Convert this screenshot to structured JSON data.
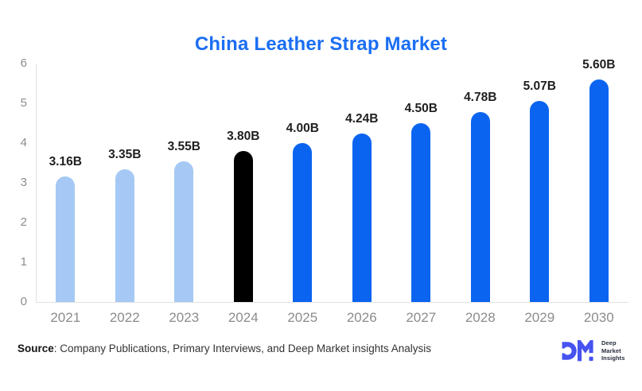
{
  "title": "China Leather Strap Market",
  "chart_data": {
    "type": "bar",
    "title": "China Leather Strap Market",
    "categories": [
      "2021",
      "2022",
      "2023",
      "2024",
      "2025",
      "2026",
      "2027",
      "2028",
      "2029",
      "2030"
    ],
    "values": [
      3.16,
      3.35,
      3.55,
      3.8,
      4.0,
      4.24,
      4.5,
      4.78,
      5.07,
      5.6
    ],
    "bar_labels": [
      "3.16B",
      "3.35B",
      "3.55B",
      "3.80B",
      "4.00B",
      "4.24B",
      "4.50B",
      "4.78B",
      "5.07B",
      "5.60B"
    ],
    "bar_colors": [
      "#A5C9F4",
      "#A5C9F4",
      "#A5C9F4",
      "#000000",
      "#0A64F0",
      "#0A64F0",
      "#0A64F0",
      "#0A64F0",
      "#0A64F0",
      "#0A64F0"
    ],
    "xlabel": "",
    "ylabel": "",
    "ylim": [
      0,
      6
    ],
    "yticks": [
      0,
      1,
      2,
      3,
      4,
      5,
      6
    ],
    "grid": false,
    "legend": "none"
  },
  "footer": {
    "source_label": "Source",
    "source_rest": ": Company Publications, Primary Interviews, and Deep Market insights Analysis"
  },
  "logo": {
    "mark": "DM",
    "lines": [
      "Deep",
      "Market",
      "Insights"
    ]
  },
  "colors": {
    "title": "#1B6EF3",
    "axis_line": "#E3E3E3",
    "tick_text": "#8C8C8C",
    "value_text": "#1F1F1F",
    "historical_bar": "#A5C9F4",
    "base_year_bar": "#000000",
    "forecast_bar": "#0A64F0",
    "logo_mark": "#4653F0",
    "logo_text": "#252B3D"
  }
}
